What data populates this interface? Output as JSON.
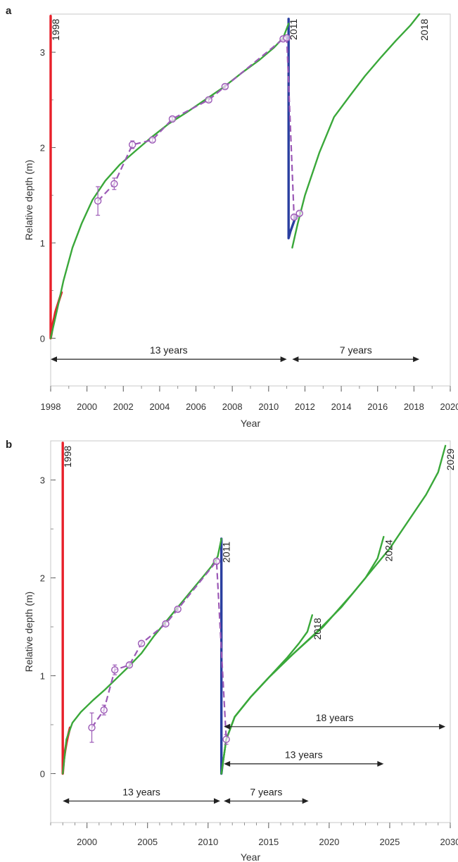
{
  "chart_data": [
    {
      "panel": "a",
      "type": "line",
      "xlabel": "Year",
      "ylabel": "Relative depth (m)",
      "xlim": [
        1998,
        2020
      ],
      "ylim": [
        -0.5,
        3.4
      ],
      "xticks": [
        1998,
        2000,
        2002,
        2004,
        2006,
        2008,
        2010,
        2012,
        2014,
        2016,
        2018,
        2020
      ],
      "yticks": [
        0,
        1,
        2,
        3
      ],
      "series": [
        {
          "color": "#e8202a",
          "x": [
            1998.0,
            1998.0,
            1998.05,
            1998.1,
            1998.15,
            1998.2,
            1998.25,
            1998.3,
            1998.35,
            1998.4,
            1998.45,
            1998.5,
            1998.55,
            1998.6
          ],
          "y": [
            3.38,
            0.0,
            0.05,
            0.12,
            0.18,
            0.22,
            0.27,
            0.3,
            0.33,
            0.36,
            0.39,
            0.42,
            0.45,
            0.48
          ]
        },
        {
          "color": "#2a3fa0",
          "x": [
            2011.1,
            2011.1,
            2011.2,
            2011.35,
            2011.5
          ],
          "y": [
            3.35,
            1.05,
            1.12,
            1.2,
            1.28
          ]
        },
        {
          "color": "#3aa83a",
          "x": [
            1998.0,
            1998.3,
            1998.7,
            1999.2,
            1999.7,
            2000.3,
            2001.0,
            2001.8,
            2002.7,
            2003.5,
            2004.5,
            2005.5,
            2006.5,
            2007.5,
            2008.5,
            2009.5,
            2010.3,
            2010.8,
            2011.1
          ],
          "y": [
            0.0,
            0.25,
            0.6,
            0.95,
            1.2,
            1.45,
            1.65,
            1.82,
            1.97,
            2.1,
            2.25,
            2.37,
            2.5,
            2.63,
            2.78,
            2.92,
            3.05,
            3.15,
            3.3
          ]
        },
        {
          "color": "#3aa83a",
          "x": [
            2011.3,
            2011.6,
            2012.0,
            2012.8,
            2013.6,
            2014.5,
            2015.3,
            2016.2,
            2017.0,
            2017.8,
            2018.3
          ],
          "y": [
            0.95,
            1.2,
            1.5,
            1.95,
            2.32,
            2.55,
            2.75,
            2.95,
            3.12,
            3.28,
            3.4
          ]
        }
      ],
      "observations": {
        "color": "#9b59b6",
        "x": [
          2000.6,
          2001.5,
          2002.5,
          2003.6,
          2004.7,
          2006.7,
          2007.6,
          2010.8,
          2011.0,
          2011.4,
          2011.7
        ],
        "y": [
          1.44,
          1.62,
          2.03,
          2.08,
          2.3,
          2.5,
          2.64,
          3.14,
          3.15,
          1.27,
          1.31
        ],
        "err": [
          0.15,
          0.06,
          0.04,
          0.02,
          0.02,
          0.02,
          0.02,
          0.02,
          0.02,
          0.02,
          0.02
        ]
      },
      "year_labels": [
        {
          "text": "1998",
          "x": 1998.0,
          "y": 3.38
        },
        {
          "text": "2011",
          "x": 2011.1,
          "y": 3.38
        },
        {
          "text": "2018",
          "x": 2018.3,
          "y": 3.38
        }
      ],
      "spans": [
        {
          "label": "13 years",
          "x0": 1998.0,
          "x1": 2011.0,
          "y": -0.22
        },
        {
          "label": "7 years",
          "x0": 2011.3,
          "x1": 2018.3,
          "y": -0.22
        }
      ]
    },
    {
      "panel": "b",
      "type": "line",
      "xlabel": "Year",
      "ylabel": "Relative depth (m)",
      "xlim": [
        1997,
        2030
      ],
      "ylim": [
        -0.5,
        3.4
      ],
      "xticks": [
        2000,
        2005,
        2010,
        2015,
        2020,
        2025,
        2030
      ],
      "yticks": [
        0,
        1,
        2,
        3
      ],
      "series": [
        {
          "color": "#e8202a",
          "x": [
            1998.0,
            1998.0,
            1998.1,
            1998.2,
            1998.3,
            1998.4,
            1998.5,
            1998.6
          ],
          "y": [
            3.38,
            0.0,
            0.15,
            0.24,
            0.31,
            0.37,
            0.42,
            0.47
          ]
        },
        {
          "color": "#2a3fa0",
          "x": [
            2011.1,
            2011.1,
            2011.2
          ],
          "y": [
            2.4,
            0.0,
            0.1
          ]
        },
        {
          "color": "#3aa83a",
          "x": [
            1998.0,
            1998.3,
            1998.8,
            1999.5,
            2000.5,
            2001.5,
            2002.5,
            2003.5,
            2004.5,
            2005.5,
            2006.5,
            2007.5,
            2008.5,
            2009.5,
            2010.3,
            2010.8,
            2011.1
          ],
          "y": [
            0.0,
            0.35,
            0.52,
            0.63,
            0.75,
            0.86,
            0.98,
            1.1,
            1.23,
            1.4,
            1.55,
            1.7,
            1.85,
            2.0,
            2.12,
            2.22,
            2.4
          ]
        },
        {
          "color": "#3aa83a",
          "x": [
            2011.1,
            2011.5,
            2012.2,
            2013.5,
            2015.0,
            2016.5,
            2017.5,
            2018.2,
            2018.6
          ],
          "y": [
            0.0,
            0.35,
            0.58,
            0.78,
            0.98,
            1.18,
            1.33,
            1.45,
            1.62
          ]
        },
        {
          "color": "#3aa83a",
          "x": [
            2011.1,
            2011.5,
            2012.2,
            2013.5,
            2015.0,
            2017.0,
            2019.0,
            2021.0,
            2023.0,
            2024.0,
            2024.5
          ],
          "y": [
            0.0,
            0.35,
            0.58,
            0.78,
            0.98,
            1.22,
            1.45,
            1.7,
            2.0,
            2.2,
            2.42
          ]
        },
        {
          "color": "#3aa83a",
          "x": [
            2011.1,
            2011.5,
            2012.2,
            2013.5,
            2015.0,
            2017.0,
            2019.5,
            2022.0,
            2025.0,
            2028.0,
            2029.0,
            2029.6
          ],
          "y": [
            0.0,
            0.35,
            0.58,
            0.78,
            0.98,
            1.22,
            1.5,
            1.85,
            2.3,
            2.85,
            3.08,
            3.35
          ]
        }
      ],
      "observations": {
        "color": "#9b59b6",
        "x": [
          2000.4,
          2001.4,
          2002.3,
          2003.5,
          2004.5,
          2006.5,
          2007.5,
          2010.7,
          2011.5
        ],
        "y": [
          0.47,
          0.65,
          1.06,
          1.11,
          1.33,
          1.53,
          1.68,
          2.17,
          0.35
        ],
        "err": [
          0.15,
          0.05,
          0.05,
          0.02,
          0.02,
          0.02,
          0.02,
          0.02,
          0.05
        ]
      },
      "year_labels": [
        {
          "text": "1998",
          "x": 1998.0,
          "y": 3.38
        },
        {
          "text": "2011",
          "x": 2011.1,
          "y": 2.4
        },
        {
          "text": "2018",
          "x": 2018.6,
          "y": 1.62
        },
        {
          "text": "2024",
          "x": 2024.5,
          "y": 2.42
        },
        {
          "text": "2029",
          "x": 2029.6,
          "y": 3.35
        }
      ],
      "spans": [
        {
          "label": "13 years",
          "x0": 1998.0,
          "x1": 2011.0,
          "y": -0.28
        },
        {
          "label": "7 years",
          "x0": 2011.3,
          "x1": 2018.3,
          "y": -0.28
        },
        {
          "label": "13 years",
          "x0": 2011.3,
          "x1": 2024.5,
          "y": 0.1
        },
        {
          "label": "18 years",
          "x0": 2011.3,
          "x1": 2029.6,
          "y": 0.48
        }
      ]
    }
  ]
}
